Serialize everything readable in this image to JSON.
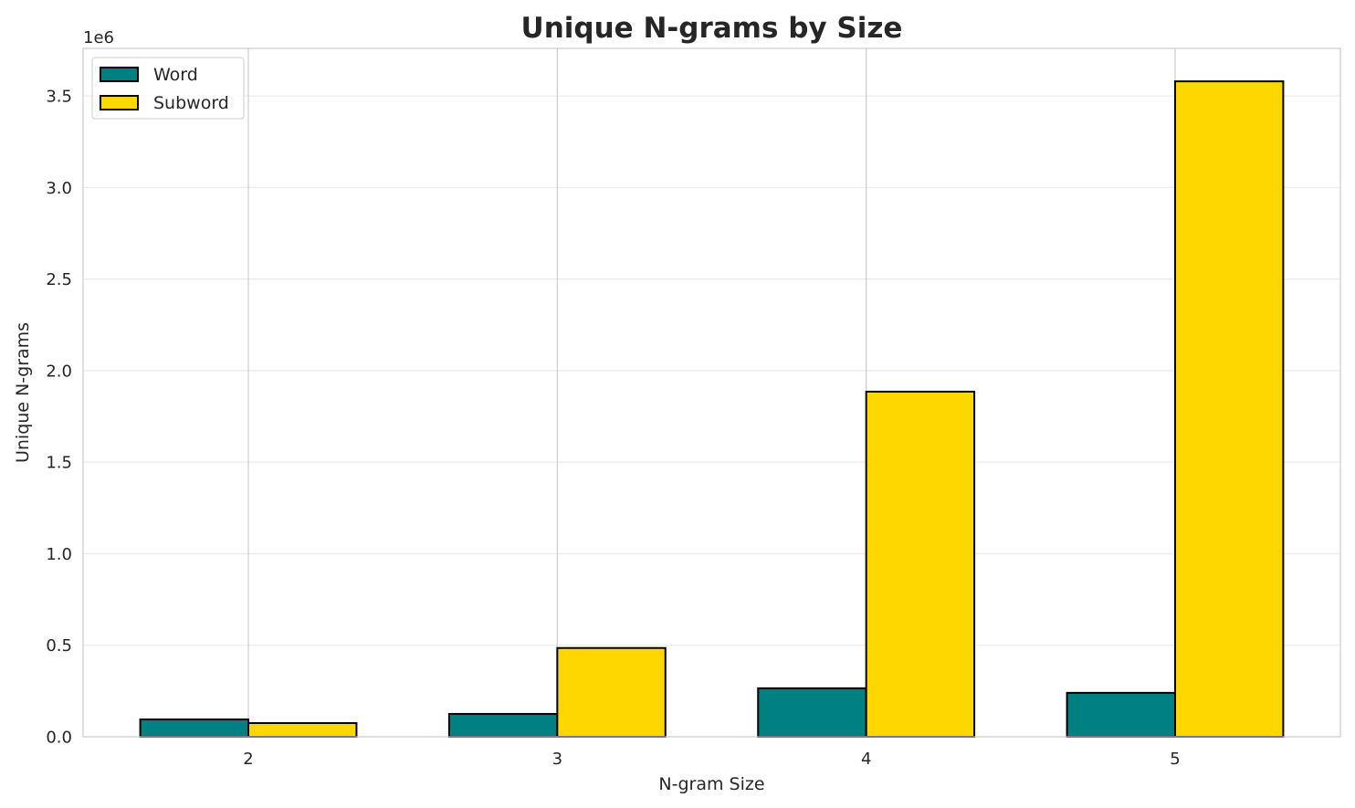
{
  "chart_data": {
    "type": "bar",
    "title": "Unique N-grams by Size",
    "xlabel": "N-gram Size",
    "ylabel": "Unique N-grams",
    "y_offset_label": "1e6",
    "categories": [
      "2",
      "3",
      "4",
      "5"
    ],
    "series": [
      {
        "name": "Word",
        "color": "#008080",
        "values": [
          95000,
          125000,
          265000,
          240000
        ]
      },
      {
        "name": "Subword",
        "color": "#FFD700",
        "values": [
          75000,
          485000,
          1885000,
          3580000
        ]
      }
    ],
    "ylim": [
      0,
      3760000
    ],
    "yticks": [
      0,
      500000,
      1000000,
      1500000,
      2000000,
      2500000,
      3000000,
      3500000
    ],
    "ytick_labels": [
      "0.0",
      "0.5",
      "1.0",
      "1.5",
      "2.0",
      "2.5",
      "3.0",
      "3.5"
    ],
    "grid": true,
    "legend_position": "top-left",
    "bar_edge_color": "#000000"
  }
}
